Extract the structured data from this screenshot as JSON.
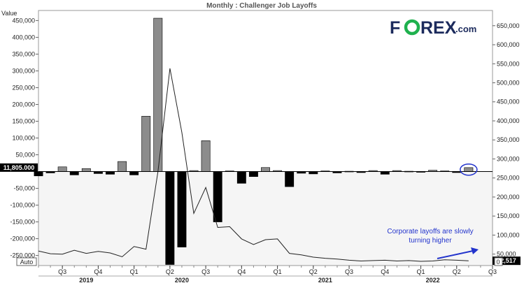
{
  "chart_data": {
    "type": "bar",
    "title": "Monthly : Challenger Job Layoffs",
    "left_axis_label": "Value",
    "left_ticks": [
      -250000,
      -200000,
      -150000,
      -100000,
      -50000,
      50000,
      100000,
      150000,
      200000,
      250000,
      300000,
      350000,
      400000,
      450000
    ],
    "left_tick_labels": [
      "-250,000",
      "-200,000",
      "-150,000",
      "-100,000",
      "-50,000",
      "50,000",
      "100,000",
      "150,000",
      "200,000",
      "250,000",
      "300,000",
      "350,000",
      "400,000",
      "450,000"
    ],
    "ylim_left": [
      -280000,
      480000
    ],
    "right_ticks": [
      50000,
      100000,
      150000,
      200000,
      250000,
      300000,
      350000,
      400000,
      450000,
      500000,
      550000,
      600000,
      650000
    ],
    "right_tick_labels": [
      "50,000",
      "100,000",
      "150,000",
      "200,000",
      "250,000",
      "300,000",
      "350,000",
      "400,000",
      "450,000",
      "500,000",
      "550,000",
      "600,000",
      "650,000"
    ],
    "ylim_right": [
      20000,
      690000
    ],
    "current_left_label": "11,805.000",
    "current_left_value": 11805,
    "current_right_label": "32,517",
    "current_right_value": 32517,
    "auto_label": "Auto",
    "right_zero_label": "0",
    "x_start": "2019-06",
    "x_end": "2022-08",
    "quarter_labels": [
      {
        "label": "Q3",
        "date": "2019-08"
      },
      {
        "label": "Q4",
        "date": "2019-11"
      },
      {
        "label": "Q1",
        "date": "2020-02"
      },
      {
        "label": "Q2",
        "date": "2020-05"
      },
      {
        "label": "Q3",
        "date": "2020-08"
      },
      {
        "label": "Q4",
        "date": "2020-11"
      },
      {
        "label": "Q1",
        "date": "2021-02"
      },
      {
        "label": "Q2",
        "date": "2021-05"
      },
      {
        "label": "Q3",
        "date": "2021-08"
      },
      {
        "label": "Q4",
        "date": "2021-11"
      },
      {
        "label": "Q1",
        "date": "2022-02"
      },
      {
        "label": "Q2",
        "date": "2022-05"
      },
      {
        "label": "Q3",
        "date": "2022-08"
      }
    ],
    "year_labels": [
      {
        "label": "2019",
        "date": "2019-10"
      },
      {
        "label": "2020",
        "date": "2020-06"
      },
      {
        "label": "2021",
        "date": "2021-06"
      },
      {
        "label": "2022",
        "date": "2022-03"
      }
    ],
    "bars": {
      "name": "Monthly change",
      "dates": [
        "2019-06",
        "2019-07",
        "2019-08",
        "2019-09",
        "2019-10",
        "2019-11",
        "2019-12",
        "2020-01",
        "2020-02",
        "2020-03",
        "2020-04",
        "2020-05",
        "2020-06",
        "2020-07",
        "2020-08",
        "2020-09",
        "2020-10",
        "2020-11",
        "2020-12",
        "2021-01",
        "2021-02",
        "2021-03",
        "2021-04",
        "2021-05",
        "2021-06",
        "2021-07",
        "2021-08",
        "2021-09",
        "2021-10",
        "2021-11",
        "2021-12",
        "2022-01",
        "2022-02",
        "2022-03",
        "2022-04",
        "2022-05",
        "2022-06"
      ],
      "values": [
        -13000,
        -4000,
        14000,
        -10000,
        9000,
        -6000,
        -8000,
        30000,
        -10000,
        165000,
        457000,
        -277000,
        -225000,
        3000,
        92000,
        -150000,
        2000,
        -35000,
        -15000,
        12000,
        3000,
        -45000,
        -5000,
        -7000,
        2000,
        -4000,
        1000,
        -3000,
        3000,
        -8000,
        3000,
        1000,
        -2000,
        4000,
        2000,
        -3000,
        11805
      ]
    },
    "line": {
      "name": "Layoffs",
      "dates": [
        "2019-06",
        "2019-07",
        "2019-08",
        "2019-09",
        "2019-10",
        "2019-11",
        "2019-12",
        "2020-01",
        "2020-02",
        "2020-03",
        "2020-04",
        "2020-05",
        "2020-06",
        "2020-07",
        "2020-08",
        "2020-09",
        "2020-10",
        "2020-11",
        "2020-12",
        "2021-01",
        "2021-02",
        "2021-03",
        "2021-04",
        "2021-05",
        "2021-06",
        "2021-07",
        "2021-08",
        "2021-09",
        "2021-10",
        "2021-11",
        "2021-12",
        "2022-01",
        "2022-02",
        "2022-03",
        "2022-04",
        "2022-05",
        "2022-06"
      ],
      "values": [
        58000,
        51000,
        50000,
        60000,
        52000,
        57000,
        53000,
        43000,
        70000,
        63000,
        267000,
        538000,
        370000,
        157000,
        225000,
        120000,
        122000,
        90000,
        75000,
        88000,
        90000,
        52000,
        48000,
        42000,
        39000,
        37000,
        34000,
        32000,
        33000,
        34000,
        32000,
        33000,
        31000,
        32000,
        35000,
        34000,
        32517
      ]
    },
    "annotation": "Corporate layoffs are slowly turning higher",
    "annotation_lines": [
      "Corporate layoffs are slowly",
      "turning higher"
    ],
    "colors": {
      "bar_up": "#8c8c8c",
      "bar_down": "#000000",
      "line": "#222222",
      "annotation": "#2233cc",
      "logo_accent": "#1fb14e",
      "logo_text": "#1b2a5c"
    }
  },
  "brand": {
    "logo_prefix": "F",
    "logo_suffix": "REX",
    "logo_tld": ".com"
  }
}
